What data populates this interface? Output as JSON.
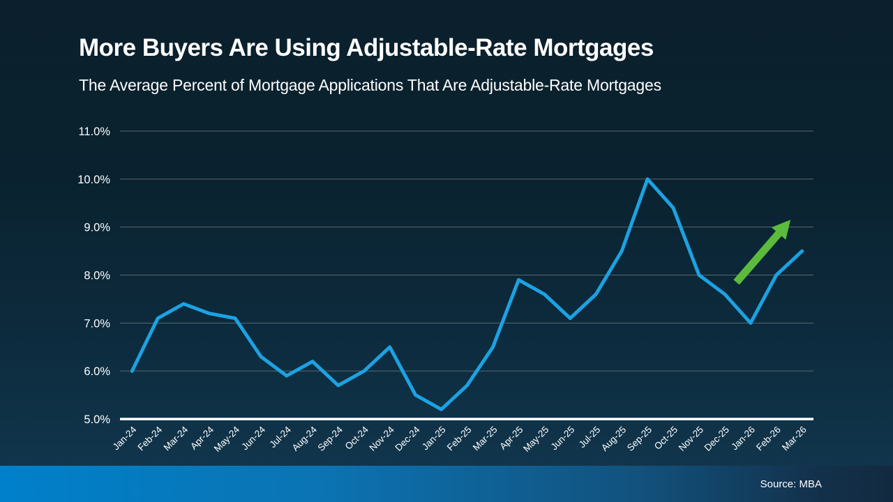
{
  "header": {
    "title": "More Buyers Are Using Adjustable-Rate Mortgages",
    "subtitle": "The Average Percent of Mortgage Applications That Are Adjustable-Rate Mortgages"
  },
  "footer": {
    "source": "Source: MBA"
  },
  "chart_data": {
    "type": "line",
    "title": "More Buyers Are Using Adjustable-Rate Mortgages",
    "subtitle": "The Average Percent of Mortgage Applications That Are Adjustable-Rate Mortgages",
    "categories": [
      "Jan-24",
      "Feb-24",
      "Mar-24",
      "Apr-24",
      "May-24",
      "Jun-24",
      "Jul-24",
      "Aug-24",
      "Sep-24",
      "Oct-24",
      "Nov-24",
      "Dec-24",
      "Jan-25",
      "Feb-25",
      "Mar-25",
      "Apr-25",
      "May-25",
      "Jun-25",
      "Jul-25",
      "Aug-25",
      "Sep-25",
      "Oct-25",
      "Nov-25",
      "Dec-25",
      "Jan-26",
      "Feb-26",
      "Mar-26"
    ],
    "values": [
      6.0,
      7.1,
      7.4,
      7.2,
      7.1,
      6.3,
      5.9,
      6.2,
      5.7,
      6.0,
      6.5,
      5.5,
      5.2,
      5.7,
      6.5,
      7.9,
      7.6,
      7.1,
      7.6,
      8.5,
      10.0,
      9.4,
      8.0,
      7.6,
      7.0,
      8.0,
      8.5
    ],
    "ylim": [
      5.0,
      11.0
    ],
    "ytick_labels": [
      "5.0%",
      "6.0%",
      "7.0%",
      "8.0%",
      "9.0%",
      "10.0%",
      "11.0%"
    ],
    "xlabel": "",
    "ylabel": "",
    "grid": true,
    "legend": "none",
    "line_color": "#1CA2E2",
    "annotation_arrow": {
      "color": "#5CBB3C",
      "x1": 23.45,
      "y1": 7.85,
      "x2": 25.55,
      "y2": 9.15
    }
  },
  "colors": {
    "background_top": "#0B202C",
    "background_bottom": "#123850",
    "footer_left": "#0080CA",
    "footer_right": "#122A40",
    "text": "#FFFFFF",
    "gridline": "#8E8E8E",
    "axis_line": "#FFFFFF"
  }
}
